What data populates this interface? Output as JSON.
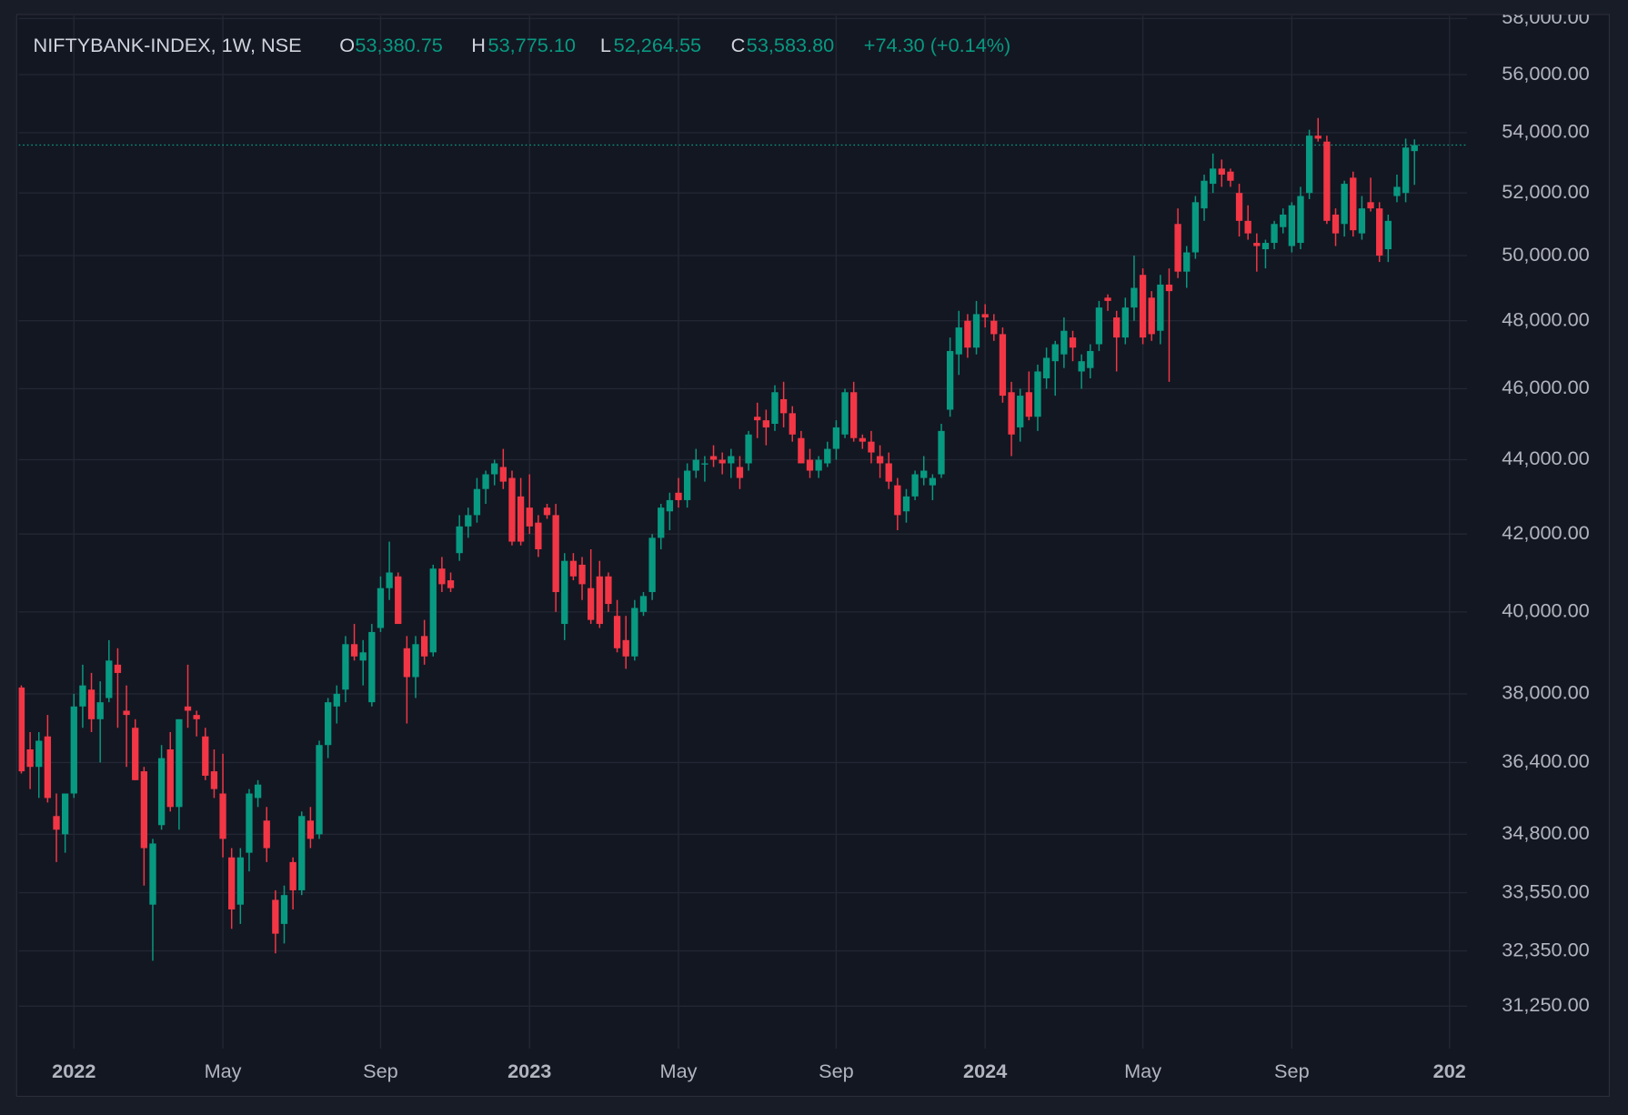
{
  "chart_data": {
    "type": "candlestick",
    "title": "NIFTYBANK-INDEX, 1W, NSE",
    "header": [
      {
        "label": "O",
        "value": "53,380.75"
      },
      {
        "label": "H",
        "value": "53,775.10"
      },
      {
        "label": "L",
        "value": "52,264.55"
      },
      {
        "label": "C",
        "value": "53,583.80"
      }
    ],
    "change": "+74.30 (+0.14%)",
    "log_scale": true,
    "grid": true,
    "up_color": "#089981",
    "down_color": "#f23645",
    "ylim": [
      30430,
      58110
    ],
    "yticks": [
      {
        "value": 31250,
        "label": "31,250.00"
      },
      {
        "value": 32350,
        "label": "32,350.00"
      },
      {
        "value": 33550,
        "label": "33,550.00"
      },
      {
        "value": 34800,
        "label": "34,800.00"
      },
      {
        "value": 36400,
        "label": "36,400.00"
      },
      {
        "value": 38000,
        "label": "38,000.00"
      },
      {
        "value": 40000,
        "label": "40,000.00"
      },
      {
        "value": 42000,
        "label": "42,000.00"
      },
      {
        "value": 44000,
        "label": "44,000.00"
      },
      {
        "value": 46000,
        "label": "46,000.00"
      },
      {
        "value": 48000,
        "label": "48,000.00"
      },
      {
        "value": 50000,
        "label": "50,000.00"
      },
      {
        "value": 52000,
        "label": "52,000.00"
      },
      {
        "value": 54000,
        "label": "54,000.00"
      },
      {
        "value": 56000,
        "label": "56,000.00"
      },
      {
        "value": 58000,
        "label": "58,000.00"
      }
    ],
    "xlim": [
      -0.3,
      165
    ],
    "xticks": [
      {
        "value": 6,
        "label": "2022"
      },
      {
        "value": 23,
        "label": "May"
      },
      {
        "value": 41,
        "label": "Sep"
      },
      {
        "value": 58,
        "label": "2023"
      },
      {
        "value": 75,
        "label": "May"
      },
      {
        "value": 93,
        "label": "Sep"
      },
      {
        "value": 110,
        "label": "2024"
      },
      {
        "value": 128,
        "label": "May"
      },
      {
        "value": 145,
        "label": "Sep"
      },
      {
        "value": 163,
        "label": "202"
      }
    ],
    "ohlc": [
      [
        38150,
        38200,
        36150,
        36200
      ],
      [
        36700,
        37100,
        35800,
        36300
      ],
      [
        36300,
        37100,
        35600,
        36900
      ],
      [
        37000,
        37500,
        35500,
        35600
      ],
      [
        35200,
        35700,
        34200,
        34900
      ],
      [
        34800,
        35700,
        34400,
        35700
      ],
      [
        35700,
        38000,
        35600,
        37700
      ],
      [
        37700,
        38700,
        37200,
        38200
      ],
      [
        38100,
        38500,
        37100,
        37400
      ],
      [
        37400,
        38300,
        36400,
        37800
      ],
      [
        37900,
        39300,
        37800,
        38800
      ],
      [
        38700,
        39100,
        37200,
        38500
      ],
      [
        37600,
        38200,
        36300,
        37500
      ],
      [
        37200,
        37400,
        36000,
        36000
      ],
      [
        36200,
        36300,
        33700,
        34500
      ],
      [
        33300,
        34700,
        32150,
        34600
      ],
      [
        35000,
        36800,
        34900,
        36500
      ],
      [
        36700,
        37100,
        35300,
        35400
      ],
      [
        35400,
        37400,
        34900,
        37400
      ],
      [
        37700,
        38700,
        37200,
        37600
      ],
      [
        37500,
        37600,
        37000,
        37400
      ],
      [
        37000,
        37200,
        36000,
        36100
      ],
      [
        36200,
        36700,
        35600,
        35800
      ],
      [
        35700,
        36600,
        34300,
        34700
      ],
      [
        34300,
        34500,
        32800,
        33200
      ],
      [
        33300,
        34500,
        32900,
        34300
      ],
      [
        34400,
        35800,
        34000,
        35700
      ],
      [
        35600,
        36000,
        35400,
        35900
      ],
      [
        35100,
        35400,
        34200,
        34500
      ],
      [
        33400,
        33600,
        32300,
        32700
      ],
      [
        32900,
        33700,
        32500,
        33500
      ],
      [
        34200,
        34300,
        33200,
        33600
      ],
      [
        33600,
        35300,
        33500,
        35200
      ],
      [
        35100,
        35400,
        34500,
        34700
      ],
      [
        34800,
        36900,
        34700,
        36800
      ],
      [
        36800,
        37900,
        36500,
        37800
      ],
      [
        37700,
        38200,
        37300,
        38000
      ],
      [
        38100,
        39400,
        37800,
        39200
      ],
      [
        39200,
        39700,
        38800,
        38900
      ],
      [
        38800,
        39300,
        38200,
        39000
      ],
      [
        37800,
        39700,
        37700,
        39500
      ],
      [
        39600,
        40900,
        39500,
        40600
      ],
      [
        40600,
        41800,
        40300,
        41000
      ],
      [
        40900,
        41000,
        39700,
        39700
      ],
      [
        39100,
        39400,
        37300,
        38400
      ],
      [
        38400,
        39400,
        37900,
        39200
      ],
      [
        39400,
        39800,
        38700,
        38900
      ],
      [
        39000,
        41200,
        38900,
        41100
      ],
      [
        41100,
        41400,
        40500,
        40700
      ],
      [
        40800,
        41000,
        40500,
        40600
      ],
      [
        41500,
        42500,
        41300,
        42200
      ],
      [
        42200,
        42700,
        41900,
        42500
      ],
      [
        42500,
        43500,
        42300,
        43200
      ],
      [
        43200,
        43700,
        42800,
        43600
      ],
      [
        43600,
        44000,
        43300,
        43900
      ],
      [
        43800,
        44300,
        43200,
        43400
      ],
      [
        43500,
        43700,
        41700,
        41800
      ],
      [
        43000,
        43500,
        41700,
        41800
      ],
      [
        42700,
        43600,
        42000,
        42200
      ],
      [
        42300,
        42500,
        41400,
        41600
      ],
      [
        42700,
        42800,
        42400,
        42500
      ],
      [
        42500,
        42800,
        40000,
        40500
      ],
      [
        39700,
        41500,
        39300,
        41300
      ],
      [
        41300,
        41500,
        40800,
        40900
      ],
      [
        41200,
        41400,
        40300,
        40700
      ],
      [
        40600,
        41600,
        39700,
        39800
      ],
      [
        40900,
        41300,
        39600,
        39700
      ],
      [
        40900,
        41000,
        40000,
        40200
      ],
      [
        39900,
        40300,
        39000,
        39100
      ],
      [
        39300,
        39900,
        38600,
        38900
      ],
      [
        38900,
        40300,
        38800,
        40100
      ],
      [
        40000,
        40500,
        39900,
        40400
      ],
      [
        40500,
        42000,
        40300,
        41900
      ],
      [
        41900,
        42800,
        41600,
        42700
      ],
      [
        42600,
        43100,
        42100,
        42900
      ],
      [
        43100,
        43500,
        42700,
        42900
      ],
      [
        42900,
        43900,
        42700,
        43700
      ],
      [
        43700,
        44300,
        43500,
        44000
      ],
      [
        43900,
        44100,
        43400,
        43900
      ],
      [
        44100,
        44400,
        43800,
        44000
      ],
      [
        44000,
        44200,
        43600,
        43900
      ],
      [
        43900,
        44300,
        43500,
        44100
      ],
      [
        43800,
        44100,
        43200,
        43500
      ],
      [
        43900,
        44800,
        43700,
        44700
      ],
      [
        45200,
        45600,
        44600,
        45100
      ],
      [
        45100,
        45400,
        44400,
        44900
      ],
      [
        45000,
        46100,
        44800,
        45900
      ],
      [
        45700,
        46200,
        44900,
        45300
      ],
      [
        45300,
        45500,
        44500,
        44700
      ],
      [
        44600,
        44800,
        43900,
        43900
      ],
      [
        44000,
        44300,
        43500,
        43700
      ],
      [
        43700,
        44100,
        43500,
        44000
      ],
      [
        43900,
        44500,
        43800,
        44300
      ],
      [
        44300,
        45100,
        44000,
        44900
      ],
      [
        44700,
        46000,
        44600,
        45900
      ],
      [
        45900,
        46200,
        44500,
        44600
      ],
      [
        44600,
        44700,
        44300,
        44500
      ],
      [
        44500,
        44800,
        43900,
        44200
      ],
      [
        44100,
        44400,
        43500,
        43900
      ],
      [
        43900,
        44200,
        43200,
        43400
      ],
      [
        43300,
        43500,
        42100,
        42500
      ],
      [
        42600,
        43200,
        42300,
        43000
      ],
      [
        43000,
        43700,
        42900,
        43600
      ],
      [
        43500,
        44100,
        43300,
        43700
      ],
      [
        43300,
        43600,
        42900,
        43500
      ],
      [
        43600,
        45000,
        43500,
        44800
      ],
      [
        45400,
        47500,
        45200,
        47100
      ],
      [
        47000,
        48300,
        46400,
        47800
      ],
      [
        48000,
        48200,
        46900,
        47200
      ],
      [
        47200,
        48600,
        47000,
        48200
      ],
      [
        48200,
        48500,
        47800,
        48100
      ],
      [
        48000,
        48200,
        47400,
        47600
      ],
      [
        47600,
        47800,
        45600,
        45800
      ],
      [
        45900,
        46200,
        44100,
        44700
      ],
      [
        44900,
        46000,
        44500,
        45800
      ],
      [
        45900,
        46500,
        45100,
        45200
      ],
      [
        45200,
        46700,
        44800,
        46500
      ],
      [
        46300,
        47200,
        46000,
        46900
      ],
      [
        46800,
        47400,
        45800,
        47300
      ],
      [
        47000,
        48100,
        46600,
        47700
      ],
      [
        47500,
        47700,
        46800,
        47200
      ],
      [
        46500,
        47000,
        46000,
        46800
      ],
      [
        46600,
        47300,
        46300,
        47100
      ],
      [
        47300,
        48600,
        47100,
        48400
      ],
      [
        48700,
        48800,
        48300,
        48600
      ],
      [
        48100,
        48300,
        46500,
        47500
      ],
      [
        47500,
        48700,
        47300,
        48400
      ],
      [
        48400,
        50000,
        48000,
        49000
      ],
      [
        49400,
        49600,
        47300,
        47500
      ],
      [
        48700,
        48900,
        47400,
        47600
      ],
      [
        47700,
        49400,
        47300,
        49100
      ],
      [
        49100,
        49600,
        46200,
        48900
      ],
      [
        51000,
        51500,
        49300,
        49500
      ],
      [
        49500,
        50300,
        49000,
        50100
      ],
      [
        50100,
        51900,
        49900,
        51700
      ],
      [
        51500,
        52600,
        51100,
        52400
      ],
      [
        52300,
        53300,
        52000,
        52800
      ],
      [
        52800,
        53100,
        52200,
        52600
      ],
      [
        52700,
        52800,
        52200,
        52400
      ],
      [
        52000,
        52300,
        50600,
        51100
      ],
      [
        51100,
        51600,
        50500,
        50700
      ],
      [
        50400,
        50700,
        49500,
        50300
      ],
      [
        50200,
        50500,
        49600,
        50400
      ],
      [
        50400,
        51100,
        50200,
        51000
      ],
      [
        50900,
        51500,
        50700,
        51300
      ],
      [
        50300,
        51700,
        50100,
        51600
      ],
      [
        50400,
        52200,
        50200,
        51900
      ],
      [
        52000,
        54100,
        51800,
        53900
      ],
      [
        53900,
        54500,
        53700,
        53800
      ],
      [
        53700,
        53900,
        51000,
        51100
      ],
      [
        51300,
        51500,
        50300,
        50700
      ],
      [
        51000,
        52400,
        50600,
        52300
      ],
      [
        52500,
        52700,
        50600,
        50800
      ],
      [
        50700,
        51900,
        50500,
        51500
      ],
      [
        51700,
        52500,
        51400,
        51500
      ],
      [
        51500,
        51700,
        49800,
        50000
      ],
      [
        50200,
        51300,
        49800,
        51100
      ],
      [
        51900,
        52600,
        51700,
        52200
      ],
      [
        52000,
        53800,
        51700,
        53500
      ],
      [
        53380.75,
        53775.1,
        52264.55,
        53583.8
      ]
    ]
  }
}
